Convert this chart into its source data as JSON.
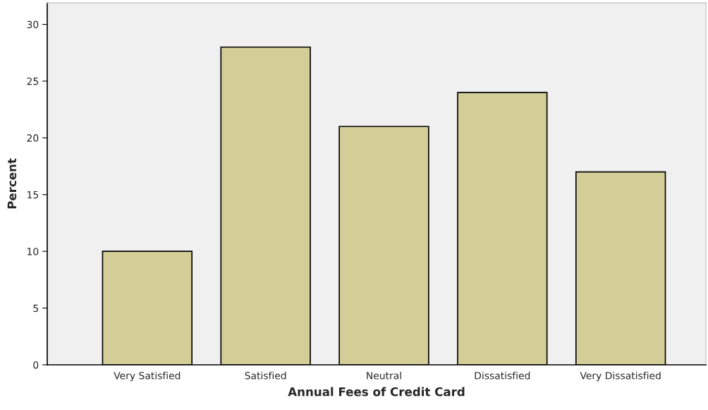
{
  "chart_data": {
    "type": "bar",
    "xlabel": "Annual Fees of Credit Card",
    "ylabel": "Percent",
    "categories": [
      "Very Satisfied",
      "Satisfied",
      "Neutral",
      "Dissatisfied",
      "Very Dissatisfied"
    ],
    "values": [
      10,
      28,
      21,
      24,
      17
    ],
    "color": "#d3ce97",
    "ylim": [
      0,
      31.9
    ],
    "yticks": [
      0,
      5,
      10,
      15,
      20,
      25,
      30
    ],
    "grid": false,
    "legend": false
  }
}
